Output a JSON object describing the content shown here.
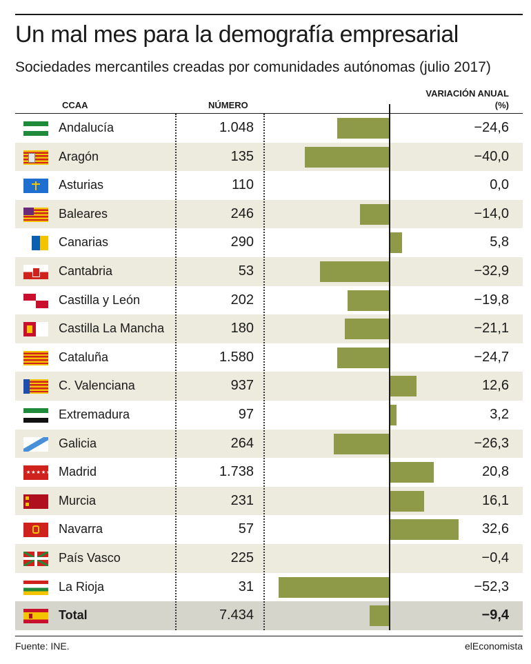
{
  "title": "Un mal mes para la demografía empresarial",
  "subtitle": "Sociedades mercantiles creadas por comunidades autónomas (julio 2017)",
  "headers": {
    "ccaa": "CCAA",
    "numero": "NÚMERO",
    "variacion": "VARIACIÓN ANUAL",
    "variacion_unit": "(%)"
  },
  "chart_data": {
    "type": "bar",
    "orientation": "horizontal",
    "title": "Un mal mes para la demografía empresarial",
    "subtitle": "Sociedades mercantiles creadas por comunidades autónomas (julio 2017)",
    "xlabel": "VARIACIÓN ANUAL (%)",
    "xlim": [
      -62,
      30
    ],
    "rows": [
      {
        "name": "Andalucía",
        "numero": "1.048",
        "variacion": -24.6,
        "label": "−24,6",
        "flag": "andalucia-flag"
      },
      {
        "name": "Aragón",
        "numero": "135",
        "variacion": -40.0,
        "label": "−40,0",
        "flag": "aragon-flag"
      },
      {
        "name": "Asturias",
        "numero": "110",
        "variacion": 0.0,
        "label": "0,0",
        "flag": "asturias-flag"
      },
      {
        "name": "Baleares",
        "numero": "246",
        "variacion": -14.0,
        "label": "−14,0",
        "flag": "baleares-flag"
      },
      {
        "name": "Canarias",
        "numero": "290",
        "variacion": 5.8,
        "label": "5,8",
        "flag": "canarias-flag"
      },
      {
        "name": "Cantabria",
        "numero": "53",
        "variacion": -32.9,
        "label": "−32,9",
        "flag": "cantabria-flag"
      },
      {
        "name": "Castilla y León",
        "numero": "202",
        "variacion": -19.8,
        "label": "−19,8",
        "flag": "castilla-leon-flag"
      },
      {
        "name": "Castilla La Mancha",
        "numero": "180",
        "variacion": -21.1,
        "label": "−21,1",
        "flag": "castilla-la-mancha-flag"
      },
      {
        "name": "Cataluña",
        "numero": "1.580",
        "variacion": -24.7,
        "label": "−24,7",
        "flag": "cataluna-flag"
      },
      {
        "name": "C. Valenciana",
        "numero": "937",
        "variacion": 12.6,
        "label": "12,6",
        "flag": "valencia-flag"
      },
      {
        "name": "Extremadura",
        "numero": "97",
        "variacion": 3.2,
        "label": "3,2",
        "flag": "extremadura-flag"
      },
      {
        "name": "Galicia",
        "numero": "264",
        "variacion": -26.3,
        "label": "−26,3",
        "flag": "galicia-flag"
      },
      {
        "name": "Madrid",
        "numero": "1.738",
        "variacion": 20.8,
        "label": "20,8",
        "flag": "madrid-flag"
      },
      {
        "name": "Murcia",
        "numero": "231",
        "variacion": 16.1,
        "label": "16,1",
        "flag": "murcia-flag"
      },
      {
        "name": "Navarra",
        "numero": "57",
        "variacion": 32.6,
        "label": "32,6",
        "flag": "navarra-flag"
      },
      {
        "name": "País Vasco",
        "numero": "225",
        "variacion": -0.4,
        "label": "−0,4",
        "flag": "pais-vasco-flag"
      },
      {
        "name": "La Rioja",
        "numero": "31",
        "variacion": -52.3,
        "label": "−52,3",
        "flag": "la-rioja-flag"
      }
    ],
    "total": {
      "name": "Total",
      "numero": "7.434",
      "variacion": -9.4,
      "label": "−9,4",
      "flag": "espana-flag"
    }
  },
  "colors": {
    "bar": "#8e9a48",
    "row_alt": "#ecebdd",
    "row_total": "#d6d5cb"
  },
  "footer": {
    "source": "Fuente: INE.",
    "brand": "elEconomista"
  }
}
